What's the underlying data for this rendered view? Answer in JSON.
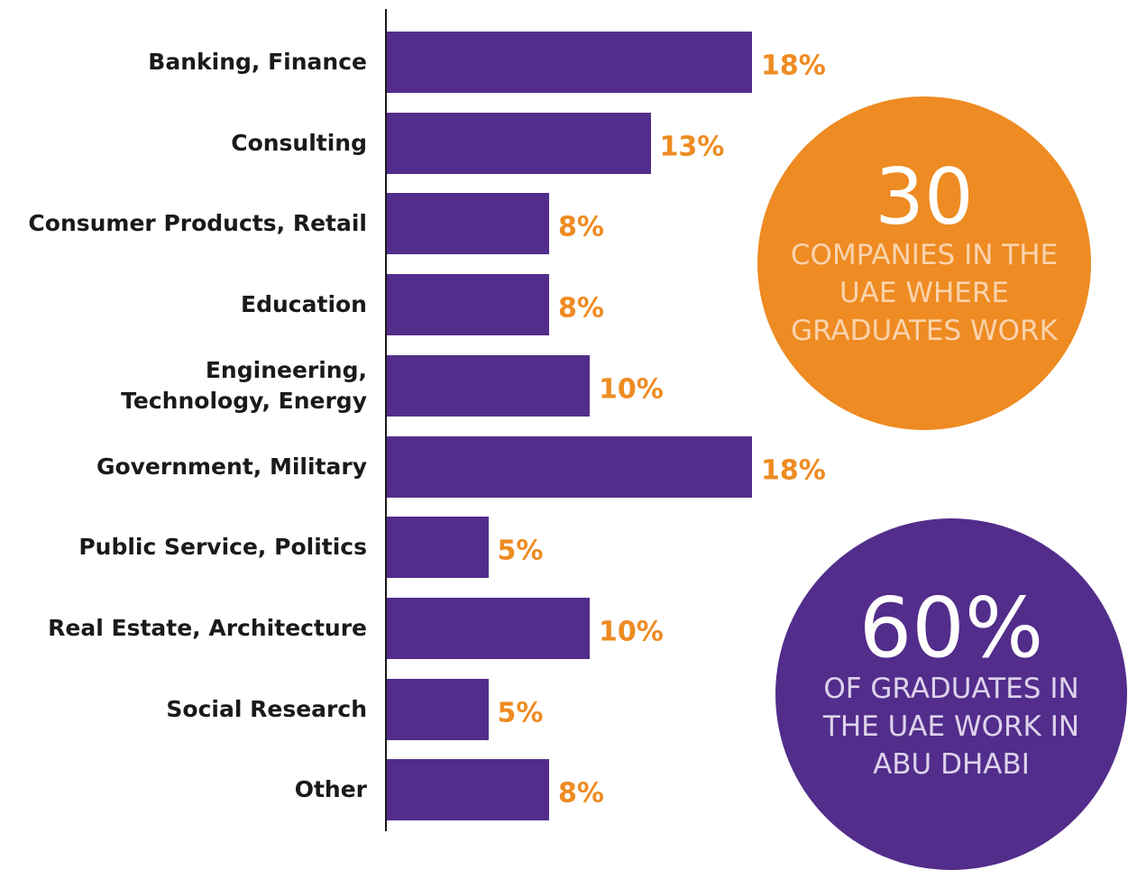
{
  "chart_data": {
    "type": "bar",
    "orientation": "horizontal",
    "categories": [
      "Banking, Finance",
      "Consulting",
      "Consumer Products, Retail",
      "Education",
      "Engineering,\nTechnology, Energy",
      "Government, Military",
      "Public Service, Politics",
      "Real Estate, Architecture",
      "Social Research",
      "Other"
    ],
    "values": [
      18,
      13,
      8,
      8,
      10,
      18,
      5,
      10,
      5,
      8
    ],
    "value_labels": [
      "18%",
      "13%",
      "8%",
      "8%",
      "10%",
      "18%",
      "5%",
      "10%",
      "5%",
      "8%"
    ],
    "color": "#522d8b",
    "label_color": "#ee8b22",
    "callouts": [
      {
        "figure": "30",
        "text": "COMPANIES IN THE UAE WHERE GRADUATES WORK",
        "color": "#ee8b22",
        "text_color": "#fbd3ad"
      },
      {
        "figure": "60%",
        "text": "OF GRADUATES IN THE UAE WORK IN ABU DHABI",
        "color": "#522d8b",
        "text_color": "#ddd3ec"
      }
    ]
  }
}
